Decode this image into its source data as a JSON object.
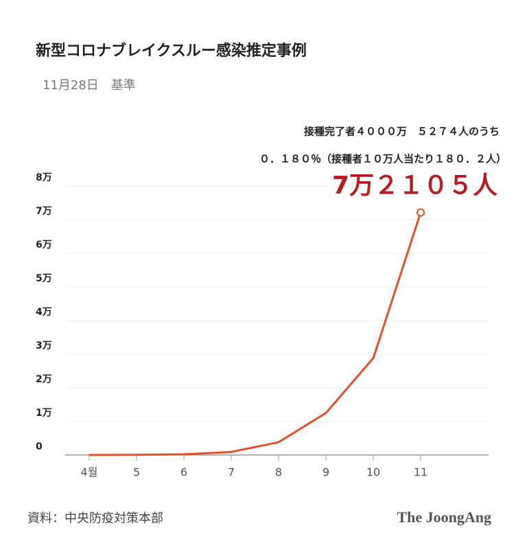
{
  "chart_data": {
    "type": "line",
    "title": "新型コロナブレイクスルー感染推定事例",
    "subtitle": "11月28日　基準",
    "annotations": [
      "接種完了者４０００万　５２７４人のうち",
      "０．１８０％（接種者１０万人当たり１８０．２人）"
    ],
    "categories": [
      "4월",
      "5",
      "6",
      "7",
      "8",
      "9",
      "10",
      "11"
    ],
    "series": [
      {
        "name": "ブレイクスルー感染推定事例",
        "color": "#e2502a",
        "values": [
          0,
          50,
          200,
          900,
          3800,
          12500,
          28800,
          72105
        ],
        "value_labels": [
          null,
          null,
          null,
          null,
          null,
          null,
          null,
          "7万２１０５人"
        ]
      }
    ],
    "ylim": [
      0,
      80000
    ],
    "yticks": [
      0,
      {
        "value": 10000,
        "label": "1万"
      },
      {
        "value": 20000,
        "label": "2万"
      },
      {
        "value": 30000,
        "label": "3万"
      },
      {
        "value": 40000,
        "label": "4万"
      },
      {
        "value": 50000,
        "label": "5万"
      },
      {
        "value": 60000,
        "label": "6万"
      },
      {
        "value": 70000,
        "label": "7万"
      },
      {
        "value": 80000,
        "label": "8万"
      }
    ],
    "grid": true,
    "source": "資料：中央防疫対策本部",
    "logo": "The JoongAng"
  }
}
